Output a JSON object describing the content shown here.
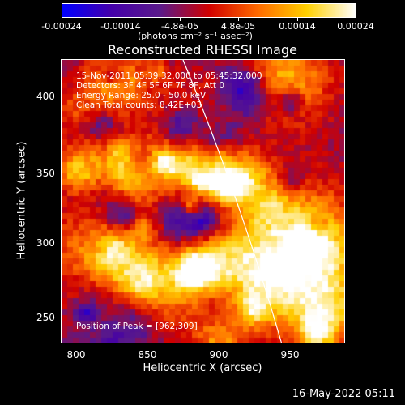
{
  "colorbar": {
    "ticks": [
      "-0.00024",
      "-0.00014",
      "-4.8e-05",
      "4.8e-05",
      "0.00014",
      "0.00024"
    ],
    "units": "(photons cm⁻² s⁻¹ asec⁻²)",
    "colormap": [
      "#0000ff",
      "#4400aa",
      "#5a1a8a",
      "#d00000",
      "#ff6a00",
      "#ffd000",
      "#ffffff"
    ]
  },
  "plot": {
    "title": "Reconstructed RHESSI Image",
    "xlabel": "Heliocentric X (arcsec)",
    "ylabel": "Heliocentric Y (arcsec)",
    "x_ticks": [
      "800",
      "850",
      "900",
      "950"
    ],
    "y_ticks": [
      "400",
      "350",
      "300",
      "250"
    ],
    "annotations": {
      "time": "15-Nov-2011 05:39:32.000 to 05:45:32.000",
      "detectors": "Detectors: 3F 4F 5F 6F 7F 8F, Att 0",
      "energy": "Energy Range: 25.0 - 50.0 keV",
      "clean": "Clean    Total counts: 8.42E+03",
      "peak": "Position of Peak = [962,309]"
    }
  },
  "timestamp": "16-May-2022 05:11"
}
